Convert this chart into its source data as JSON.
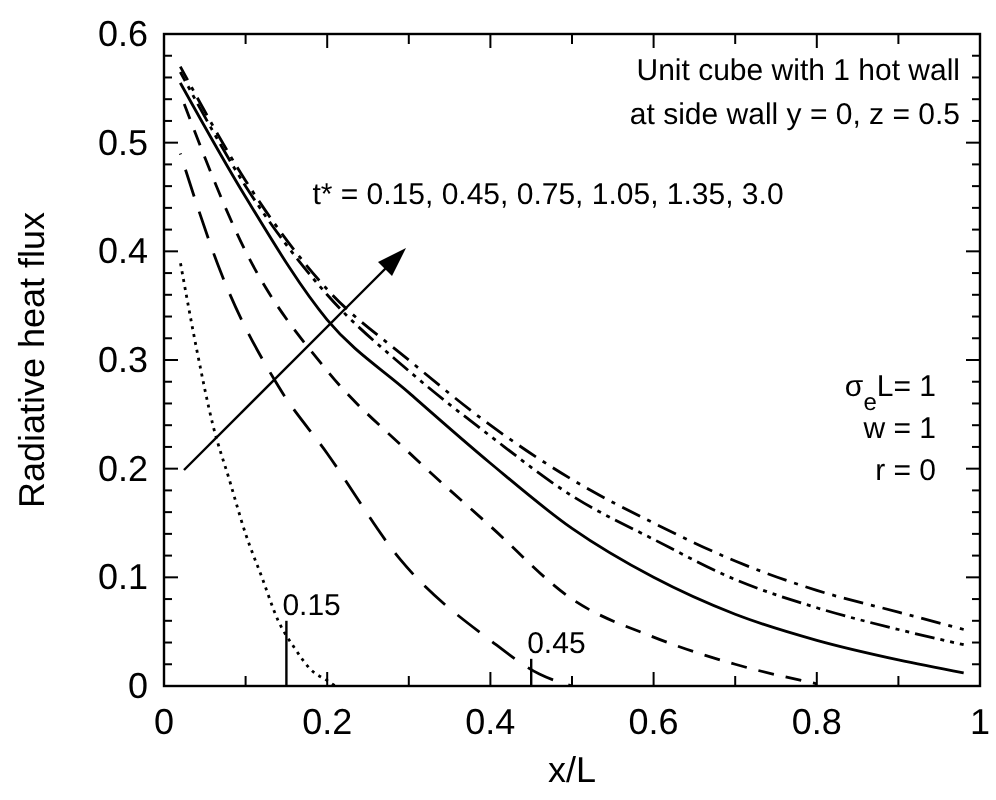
{
  "chart_data": {
    "type": "line",
    "xlabel": "x/L",
    "ylabel": "Radiative heat flux",
    "xlim": [
      0,
      1
    ],
    "ylim": [
      0,
      0.6
    ],
    "xticks": [
      0,
      {
        "value": 0.1,
        "label": null
      },
      0.2,
      {
        "value": 0.3,
        "label": null
      },
      0.4,
      {
        "value": 0.5,
        "label": null
      },
      0.6,
      {
        "value": 0.7,
        "label": null
      },
      0.8,
      {
        "value": 0.9,
        "label": null
      },
      1
    ],
    "yticks": [
      0,
      {
        "value": 0.02,
        "label": null
      },
      {
        "value": 0.04,
        "label": null
      },
      {
        "value": 0.06,
        "label": null
      },
      {
        "value": 0.08,
        "label": null
      },
      0.1,
      {
        "value": 0.12,
        "label": null
      },
      {
        "value": 0.14,
        "label": null
      },
      {
        "value": 0.16,
        "label": null
      },
      {
        "value": 0.18,
        "label": null
      },
      0.2,
      {
        "value": 0.22,
        "label": null
      },
      {
        "value": 0.24,
        "label": null
      },
      {
        "value": 0.26,
        "label": null
      },
      {
        "value": 0.28,
        "label": null
      },
      0.3,
      {
        "value": 0.32,
        "label": null
      },
      {
        "value": 0.34,
        "label": null
      },
      {
        "value": 0.36,
        "label": null
      },
      {
        "value": 0.38,
        "label": null
      },
      0.4,
      {
        "value": 0.42,
        "label": null
      },
      {
        "value": 0.44,
        "label": null
      },
      {
        "value": 0.46,
        "label": null
      },
      {
        "value": 0.48,
        "label": null
      },
      0.5,
      {
        "value": 0.52,
        "label": null
      },
      {
        "value": 0.54,
        "label": null
      },
      {
        "value": 0.56,
        "label": null
      },
      {
        "value": 0.58,
        "label": null
      },
      0.6
    ],
    "grid": false,
    "series": [
      {
        "color": "#000000",
        "line_style": "dotted",
        "x": [
          0.02,
          0.04,
          0.06,
          0.08,
          0.1,
          0.12,
          0.14,
          0.16,
          0.18,
          0.2,
          0.21
        ],
        "values": [
          0.39,
          0.31,
          0.24,
          0.19,
          0.14,
          0.1,
          0.06,
          0.035,
          0.015,
          0.005,
          0
        ]
      },
      {
        "color": "#000000",
        "line_style": "longdash",
        "x": [
          0.02,
          0.07,
          0.14,
          0.2,
          0.29,
          0.4,
          0.46,
          0.5
        ],
        "values": [
          0.49,
          0.38,
          0.276,
          0.214,
          0.116,
          0.042,
          0.011,
          0
        ]
      },
      {
        "color": "#000000",
        "line_style": "dashed",
        "x": [
          0.02,
          0.1,
          0.2,
          0.3,
          0.4,
          0.5,
          0.6,
          0.7,
          0.8
        ],
        "values": [
          0.545,
          0.4,
          0.29,
          0.215,
          0.147,
          0.08,
          0.045,
          0.02,
          0.002
        ]
      },
      {
        "color": "#000000",
        "line_style": "solid",
        "x": [
          0.02,
          0.1,
          0.2,
          0.3,
          0.4,
          0.5,
          0.6,
          0.7,
          0.8,
          0.9,
          0.98
        ],
        "values": [
          0.555,
          0.45,
          0.337,
          0.27,
          0.205,
          0.145,
          0.1,
          0.066,
          0.042,
          0.024,
          0.012
        ]
      },
      {
        "color": "#000000",
        "line_style": "dashdotdot",
        "x": [
          0.02,
          0.1,
          0.2,
          0.3,
          0.4,
          0.5,
          0.6,
          0.7,
          0.8,
          0.9,
          0.98
        ],
        "values": [
          0.565,
          0.46,
          0.36,
          0.29,
          0.23,
          0.175,
          0.135,
          0.098,
          0.072,
          0.052,
          0.038
        ]
      },
      {
        "color": "#000000",
        "line_style": "dashdot",
        "x": [
          0.02,
          0.1,
          0.2,
          0.3,
          0.4,
          0.5,
          0.6,
          0.7,
          0.8,
          0.9,
          0.98
        ],
        "values": [
          0.57,
          0.465,
          0.365,
          0.3,
          0.24,
          0.19,
          0.15,
          0.115,
          0.088,
          0.068,
          0.052
        ]
      }
    ],
    "annotations": [
      "Unit cube with 1 hot wall",
      "at side wall y = 0, z = 0.5",
      "t* = 0.15, 0.45, 0.75, 1.05, 1.35, 3.0",
      "σ$_{e}$L= 1",
      "w = 1",
      "r = 0",
      {
        "text": "0.15",
        "x": 0.15,
        "y": 0.06
      },
      {
        "text": "0.45",
        "x": 0.45,
        "y": 0.025
      }
    ]
  }
}
